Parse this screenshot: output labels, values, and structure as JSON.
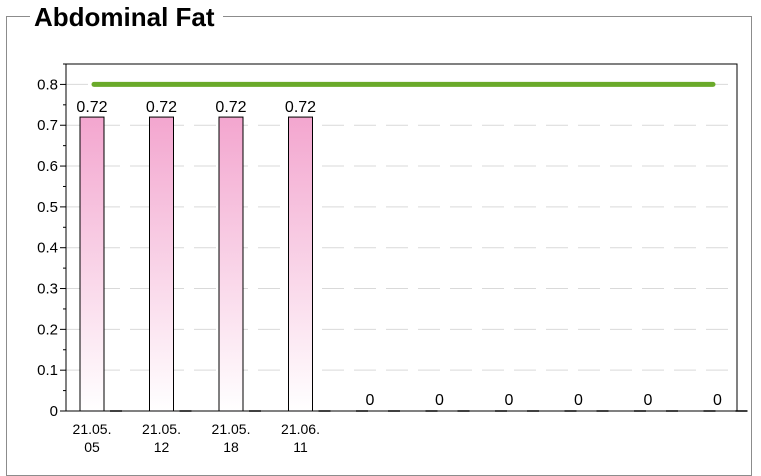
{
  "panel": {
    "title": "Abdominal Fat"
  },
  "colors": {
    "bar_top": "#f3a6cf",
    "bar_bottom": "#ffffff",
    "target_line": "#6aaa2a",
    "grid": "#d9d9d9",
    "axis": "#000000"
  },
  "chart_data": {
    "type": "bar",
    "title": "Abdominal Fat",
    "xlabel": "",
    "ylabel": "",
    "ylim": [
      0,
      0.85
    ],
    "yticks": [
      "0",
      "0.1",
      "0.2",
      "0.3",
      "0.4",
      "0.5",
      "0.6",
      "0.7",
      "0.8"
    ],
    "categories": [
      [
        "21.05.",
        "05"
      ],
      [
        "21.05.",
        "12"
      ],
      [
        "21.05.",
        "18"
      ],
      [
        "21.06.",
        "11"
      ],
      [
        "",
        ""
      ],
      [
        "",
        ""
      ],
      [
        "",
        ""
      ],
      [
        "",
        ""
      ],
      [
        "",
        ""
      ],
      [
        "",
        ""
      ]
    ],
    "values": [
      0.72,
      0.72,
      0.72,
      0.72,
      0,
      0,
      0,
      0,
      0,
      0
    ],
    "value_labels": [
      "0.72",
      "0.72",
      "0.72",
      "0.72",
      "0",
      "0",
      "0",
      "0",
      "0",
      "0"
    ],
    "reference_line": {
      "value": 0.8
    },
    "grid": true,
    "legend": "none"
  }
}
